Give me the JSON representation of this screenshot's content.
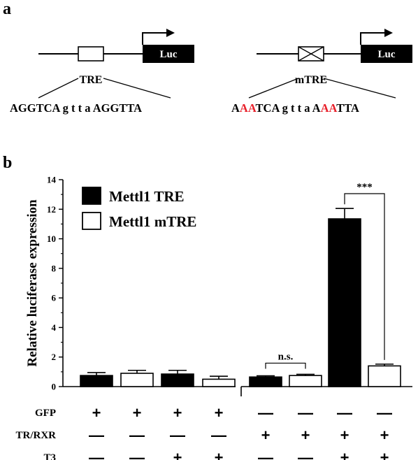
{
  "panel_a": {
    "letter": "a",
    "left": {
      "element": "TRE",
      "reporter": "Luc",
      "sequence": [
        {
          "text": "AGGTCA",
          "color": "#000000"
        },
        {
          "text": " g t t a ",
          "color": "#000000"
        },
        {
          "text": "AGGTTA",
          "color": "#000000"
        }
      ]
    },
    "right": {
      "element": "mTRE",
      "reporter": "Luc",
      "sequence": [
        {
          "text": "A",
          "color": "#000000"
        },
        {
          "text": "AA",
          "color": "#e8202a"
        },
        {
          "text": "TCA g t t a A",
          "color": "#000000"
        },
        {
          "text": "AA",
          "color": "#e8202a"
        },
        {
          "text": "TTA",
          "color": "#000000"
        }
      ]
    }
  },
  "panel_b": {
    "letter": "b"
  },
  "chart_data": {
    "type": "bar",
    "ylabel": "Relative luciferase expression",
    "ylim": [
      0,
      14
    ],
    "yticks": [
      0,
      2,
      4,
      6,
      8,
      10,
      12,
      14
    ],
    "series": [
      {
        "name": "Mettl1 TRE",
        "color": "#000000"
      },
      {
        "name": "Mettl1 mTRE",
        "color": "#ffffff"
      }
    ],
    "bars": [
      {
        "series": 0,
        "value": 0.75,
        "error": 0.2
      },
      {
        "series": 1,
        "value": 0.9,
        "error": 0.2
      },
      {
        "series": 0,
        "value": 0.85,
        "error": 0.25
      },
      {
        "series": 1,
        "value": 0.5,
        "error": 0.2
      },
      {
        "series": 0,
        "value": 0.65,
        "error": 0.08
      },
      {
        "series": 1,
        "value": 0.75,
        "error": 0.08
      },
      {
        "series": 0,
        "value": 11.35,
        "error": 0.7
      },
      {
        "series": 1,
        "value": 1.4,
        "error": 0.12
      }
    ],
    "significance": [
      {
        "bars": [
          4,
          5
        ],
        "label": "n.s."
      },
      {
        "bars": [
          6,
          7
        ],
        "label": "***"
      }
    ],
    "conditions": [
      {
        "label": "GFP",
        "values": [
          "+",
          "+",
          "+",
          "+",
          "—",
          "—",
          "—",
          "—"
        ]
      },
      {
        "label": "TR/RXR",
        "values": [
          "—",
          "—",
          "—",
          "—",
          "+",
          "+",
          "+",
          "+"
        ]
      },
      {
        "label": "T3",
        "values": [
          "—",
          "—",
          "+",
          "+",
          "—",
          "—",
          "+",
          "+"
        ]
      }
    ],
    "legend_position": "top-left"
  }
}
